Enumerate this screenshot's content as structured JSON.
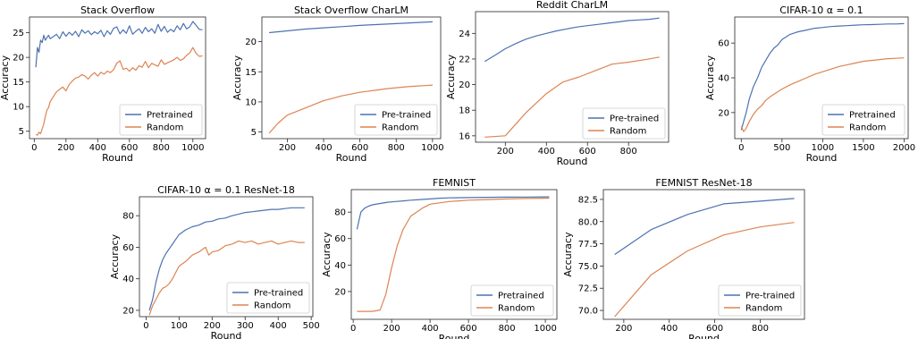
{
  "colors": {
    "pretrained": "#4c72b0",
    "random": "#dd8452"
  },
  "chart_data": [
    {
      "type": "line",
      "title": "Stack Overflow",
      "xlabel": "Round",
      "ylabel": "Accuracy",
      "xlim": [
        -30,
        1080
      ],
      "ylim": [
        3.5,
        28.2
      ],
      "xticks": [
        0,
        200,
        400,
        600,
        800,
        1000
      ],
      "yticks": [
        5,
        10,
        15,
        20,
        25
      ],
      "legend": {
        "position": "lower-right",
        "entries": [
          "Pretrained",
          "Random"
        ]
      },
      "series": [
        {
          "name": "Pretrained",
          "color": "pretrained",
          "x": [
            10,
            20,
            30,
            40,
            50,
            60,
            70,
            80,
            90,
            100,
            120,
            140,
            160,
            180,
            200,
            220,
            240,
            260,
            280,
            300,
            320,
            340,
            360,
            380,
            400,
            420,
            440,
            460,
            480,
            500,
            520,
            540,
            560,
            580,
            600,
            620,
            640,
            660,
            680,
            700,
            720,
            740,
            760,
            780,
            800,
            820,
            840,
            860,
            880,
            900,
            920,
            940,
            960,
            980,
            1000,
            1020,
            1040,
            1060
          ],
          "y": [
            18,
            22,
            21,
            23.5,
            23,
            24.5,
            23.5,
            24,
            24.5,
            23.8,
            24.2,
            24.7,
            23.8,
            25.2,
            24.3,
            25.1,
            24.5,
            25.3,
            24.2,
            25.6,
            24.9,
            25.4,
            24.6,
            25.2,
            24.8,
            25.5,
            24.2,
            25.4,
            24.7,
            25.9,
            26.2,
            24.8,
            25.6,
            24.9,
            26.4,
            24.7,
            25.3,
            25.8,
            24.9,
            26.1,
            25.2,
            25.8,
            24.9,
            26.7,
            25.3,
            26.3,
            25.1,
            25.7,
            25.2,
            26.4,
            25.6,
            26.9,
            25.8,
            26.2,
            27.3,
            26.5,
            25.7,
            25.6
          ]
        },
        {
          "name": "Random",
          "color": "random",
          "x": [
            10,
            20,
            30,
            40,
            50,
            60,
            70,
            80,
            90,
            100,
            120,
            140,
            160,
            180,
            200,
            220,
            240,
            260,
            280,
            300,
            320,
            340,
            360,
            380,
            400,
            420,
            440,
            460,
            480,
            500,
            520,
            540,
            560,
            580,
            600,
            620,
            640,
            660,
            680,
            700,
            720,
            740,
            760,
            780,
            800,
            820,
            840,
            860,
            880,
            900,
            920,
            940,
            960,
            980,
            1000,
            1020,
            1040,
            1060
          ],
          "y": [
            4.3,
            4.2,
            4.8,
            4.5,
            5.5,
            6.5,
            8,
            9.3,
            9.8,
            11,
            12,
            13,
            13.5,
            14,
            13.2,
            14.5,
            15.2,
            15.8,
            16,
            16.5,
            16.2,
            15.6,
            16.4,
            16.9,
            16.2,
            17,
            16.6,
            17.2,
            16.9,
            17.5,
            18.8,
            19.3,
            17.6,
            17.8,
            17.2,
            17.9,
            17.4,
            18.3,
            18,
            19.2,
            17.9,
            18.8,
            18.5,
            18.2,
            19.5,
            18.6,
            18.9,
            19.2,
            19.5,
            20,
            19.4,
            19.7,
            20.4,
            20.9,
            22,
            20.8,
            20.2,
            20.3
          ]
        }
      ]
    },
    {
      "type": "line",
      "title": "Stack Overflow CharLM",
      "xlabel": "Round",
      "ylabel": "Accuracy",
      "xlim": [
        60,
        1045
      ],
      "ylim": [
        3.9,
        24.1
      ],
      "xticks": [
        200,
        400,
        600,
        800,
        1000
      ],
      "yticks": [
        5,
        10,
        15,
        20
      ],
      "legend": {
        "position": "lower-right",
        "entries": [
          "Pre-trained",
          "Random"
        ]
      },
      "series": [
        {
          "name": "Pre-trained",
          "color": "pretrained",
          "x": [
            100,
            200,
            300,
            400,
            500,
            600,
            700,
            800,
            900,
            1000
          ],
          "y": [
            21.5,
            21.8,
            22.1,
            22.3,
            22.5,
            22.7,
            22.85,
            23.0,
            23.15,
            23.3
          ]
        },
        {
          "name": "Random",
          "color": "random",
          "x": [
            100,
            150,
            200,
            250,
            300,
            350,
            400,
            450,
            500,
            550,
            600,
            650,
            700,
            750,
            800,
            850,
            900,
            950,
            1000
          ],
          "y": [
            4.8,
            6.5,
            7.8,
            8.4,
            9.0,
            9.6,
            10.2,
            10.6,
            11.0,
            11.3,
            11.6,
            11.8,
            12.0,
            12.2,
            12.35,
            12.5,
            12.6,
            12.7,
            12.8
          ]
        }
      ]
    },
    {
      "type": "line",
      "title": "Reddit CharLM",
      "xlabel": "Round",
      "ylabel": "Accuracy",
      "xlim": [
        55,
        995
      ],
      "ylim": [
        15.5,
        25.7
      ],
      "xticks": [
        200,
        400,
        600,
        800
      ],
      "yticks": [
        16,
        18,
        20,
        22,
        24
      ],
      "legend": {
        "position": "lower-right",
        "entries": [
          "Pre-trained",
          "Random"
        ]
      },
      "series": [
        {
          "name": "Pre-trained",
          "color": "pretrained",
          "x": [
            100,
            150,
            200,
            250,
            300,
            350,
            400,
            450,
            500,
            550,
            600,
            650,
            700,
            750,
            800,
            850,
            900,
            950
          ],
          "y": [
            21.8,
            22.3,
            22.8,
            23.2,
            23.55,
            23.8,
            24.0,
            24.2,
            24.35,
            24.5,
            24.6,
            24.7,
            24.8,
            24.9,
            25.0,
            25.05,
            25.1,
            25.2
          ]
        },
        {
          "name": "Random",
          "color": "random",
          "x": [
            100,
            200,
            300,
            400,
            480,
            560,
            640,
            720,
            800,
            880,
            950
          ],
          "y": [
            15.9,
            16.0,
            17.8,
            19.3,
            20.2,
            20.6,
            21.1,
            21.6,
            21.75,
            21.95,
            22.15
          ]
        }
      ]
    },
    {
      "type": "line",
      "title": "CIFAR-10 α = 0.1",
      "xlabel": "Round",
      "ylabel": "Accuracy",
      "xlim": [
        -80,
        2050
      ],
      "ylim": [
        5,
        75
      ],
      "xticks": [
        0,
        500,
        1000,
        1500,
        2000
      ],
      "yticks": [
        20,
        40,
        60
      ],
      "legend": {
        "position": "lower-right",
        "entries": [
          "Pretrained",
          "Random"
        ]
      },
      "series": [
        {
          "name": "Pretrained",
          "color": "pretrained",
          "x": [
            0,
            30,
            60,
            100,
            150,
            200,
            250,
            300,
            350,
            400,
            450,
            500,
            600,
            700,
            800,
            900,
            1000,
            1100,
            1200,
            1300,
            1400,
            1500,
            1600,
            1700,
            1800,
            1900,
            2000
          ],
          "y": [
            10,
            15,
            20,
            28,
            35,
            40,
            46,
            50,
            54,
            57,
            59,
            62,
            65,
            66.5,
            67.5,
            68.5,
            69,
            69.5,
            69.8,
            70,
            70.3,
            70.5,
            70.6,
            70.8,
            71,
            71,
            71.2
          ]
        },
        {
          "name": "Random",
          "color": "random",
          "x": [
            0,
            30,
            60,
            100,
            150,
            200,
            250,
            300,
            350,
            400,
            450,
            500,
            600,
            700,
            800,
            900,
            1000,
            1100,
            1200,
            1300,
            1400,
            1500,
            1600,
            1700,
            1800,
            1900,
            2000
          ],
          "y": [
            12,
            9,
            11,
            15,
            19,
            22,
            24,
            27,
            29,
            30.5,
            32,
            33.5,
            36,
            38,
            40,
            42,
            43.5,
            45,
            46.5,
            47.5,
            48.5,
            49.5,
            50,
            50.5,
            51,
            51.2,
            51.5
          ]
        }
      ]
    },
    {
      "type": "line",
      "title": "CIFAR-10 α = 0.1 ResNet-18",
      "xlabel": "Round",
      "ylabel": "Accuracy",
      "xlim": [
        -20,
        505
      ],
      "ylim": [
        16,
        92
      ],
      "xticks": [
        0,
        100,
        200,
        300,
        400,
        500
      ],
      "yticks": [
        20,
        40,
        60,
        80
      ],
      "legend": {
        "position": "lower-right",
        "entries": [
          "Pre-trained",
          "Random"
        ]
      },
      "series": [
        {
          "name": "Pre-trained",
          "color": "pretrained",
          "x": [
            10,
            20,
            30,
            40,
            50,
            60,
            70,
            80,
            90,
            100,
            120,
            140,
            160,
            180,
            200,
            220,
            240,
            260,
            280,
            300,
            320,
            340,
            360,
            380,
            400,
            420,
            440,
            460,
            480
          ],
          "y": [
            20,
            27,
            38,
            46,
            52,
            56,
            59,
            62,
            65,
            68,
            71,
            73,
            74,
            76,
            76.5,
            78,
            78.5,
            80,
            81,
            82,
            82.5,
            83,
            83.5,
            84,
            84,
            84.5,
            85,
            85,
            85
          ]
        },
        {
          "name": "Random",
          "color": "random",
          "x": [
            10,
            20,
            30,
            40,
            50,
            60,
            70,
            80,
            90,
            100,
            120,
            140,
            160,
            180,
            190,
            200,
            220,
            240,
            260,
            280,
            300,
            320,
            340,
            360,
            380,
            400,
            420,
            440,
            460,
            480
          ],
          "y": [
            17,
            23,
            27,
            31,
            34,
            35,
            37,
            40,
            44,
            48,
            51,
            55,
            57,
            60,
            55,
            57,
            58,
            61,
            62,
            64,
            63,
            64,
            62,
            63,
            64,
            62,
            63,
            64,
            63,
            63
          ]
        }
      ]
    },
    {
      "type": "line",
      "title": "FEMNIST",
      "xlabel": "Round",
      "ylabel": "Accuracy",
      "xlim": [
        -10,
        1060
      ],
      "ylim": [
        -1,
        97
      ],
      "xticks": [
        0,
        200,
        400,
        600,
        800,
        1000
      ],
      "yticks": [
        20,
        40,
        60,
        80
      ],
      "legend": {
        "position": "lower-right",
        "entries": [
          "Pretrained",
          "Random"
        ]
      },
      "series": [
        {
          "name": "Pretrained",
          "color": "pretrained",
          "x": [
            20,
            40,
            60,
            80,
            100,
            140,
            180,
            220,
            260,
            300,
            350,
            400,
            450,
            500,
            600,
            700,
            800,
            900,
            1000,
            1020
          ],
          "y": [
            67,
            80,
            83,
            84.5,
            85.5,
            86.5,
            87.5,
            88,
            88.5,
            89,
            89.5,
            90,
            90.5,
            90.8,
            91,
            91.2,
            91.3,
            91.4,
            91.5,
            91.5
          ]
        },
        {
          "name": "Random",
          "color": "random",
          "x": [
            20,
            60,
            100,
            140,
            170,
            200,
            230,
            260,
            280,
            300,
            320,
            340,
            360,
            400,
            450,
            500,
            550,
            600,
            700,
            800,
            900,
            1000,
            1020
          ],
          "y": [
            5,
            5,
            5,
            6,
            18,
            38,
            55,
            67,
            72,
            77,
            79,
            81,
            83,
            86,
            87,
            88,
            88.5,
            89,
            89.5,
            90,
            90.3,
            90.5,
            90.5
          ]
        }
      ]
    },
    {
      "type": "line",
      "title": "FEMNIST ResNet-18",
      "xlabel": "Round",
      "ylabel": "Accuracy",
      "xlim": [
        110,
        995
      ],
      "ylim": [
        69,
        83.6
      ],
      "xticks": [
        200,
        400,
        600,
        800
      ],
      "yticks": [
        70.0,
        72.5,
        75.0,
        77.5,
        80.0,
        82.5
      ],
      "ytick_labels": [
        "70.0",
        "72.5",
        "75.0",
        "77.5",
        "80.0",
        "82.5"
      ],
      "legend": {
        "position": "lower-right",
        "entries": [
          "Pre-trained",
          "Random"
        ]
      },
      "series": [
        {
          "name": "Pre-trained",
          "color": "pretrained",
          "x": [
            160,
            320,
            480,
            640,
            800,
            950
          ],
          "y": [
            76.3,
            79.1,
            80.8,
            82.0,
            82.3,
            82.6
          ]
        },
        {
          "name": "Random",
          "color": "random",
          "x": [
            160,
            320,
            480,
            640,
            800,
            950
          ],
          "y": [
            69.3,
            74.0,
            76.7,
            78.5,
            79.4,
            79.9
          ]
        }
      ]
    }
  ]
}
